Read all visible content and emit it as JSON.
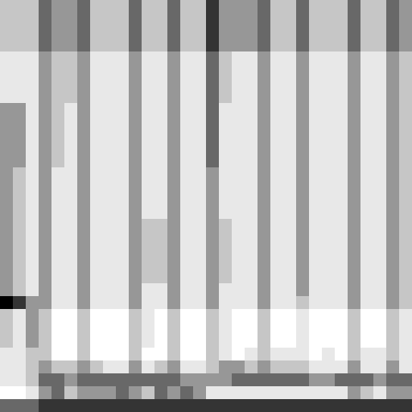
{
  "chart_data": {
    "type": "heatmap",
    "color": "greys",
    "tick_labels": false,
    "cells": [
      [
        4,
        4,
        4,
        6,
        5,
        5,
        6,
        4,
        4,
        4,
        6,
        4,
        4,
        6,
        4,
        4,
        7,
        5,
        5,
        5,
        6,
        4,
        4,
        6,
        4,
        4,
        4,
        6,
        4,
        4,
        6,
        5
      ],
      [
        4,
        4,
        4,
        6,
        5,
        5,
        6,
        4,
        4,
        4,
        6,
        4,
        4,
        6,
        4,
        4,
        7,
        5,
        5,
        5,
        6,
        4,
        4,
        6,
        4,
        4,
        4,
        6,
        4,
        4,
        6,
        5
      ],
      [
        4,
        4,
        4,
        6,
        5,
        5,
        6,
        4,
        4,
        4,
        6,
        4,
        4,
        6,
        4,
        4,
        7,
        5,
        5,
        5,
        6,
        4,
        4,
        6,
        4,
        4,
        4,
        6,
        4,
        4,
        6,
        5
      ],
      [
        4,
        4,
        4,
        6,
        5,
        5,
        6,
        4,
        4,
        4,
        6,
        4,
        4,
        6,
        4,
        4,
        7,
        5,
        5,
        5,
        6,
        4,
        4,
        6,
        4,
        4,
        4,
        6,
        4,
        4,
        6,
        5
      ],
      [
        3,
        3,
        3,
        5,
        4,
        4,
        5,
        3,
        3,
        3,
        5,
        3,
        3,
        5,
        3,
        3,
        6,
        4,
        3,
        3,
        5,
        3,
        3,
        5,
        3,
        3,
        3,
        5,
        3,
        3,
        5,
        4
      ],
      [
        3,
        3,
        3,
        5,
        4,
        4,
        5,
        3,
        3,
        3,
        5,
        3,
        3,
        5,
        3,
        3,
        6,
        4,
        3,
        3,
        5,
        3,
        3,
        5,
        3,
        3,
        3,
        5,
        3,
        3,
        5,
        4
      ],
      [
        3,
        3,
        3,
        5,
        4,
        4,
        5,
        3,
        3,
        3,
        5,
        3,
        3,
        5,
        3,
        3,
        6,
        4,
        3,
        3,
        5,
        3,
        3,
        5,
        3,
        3,
        3,
        5,
        3,
        3,
        5,
        4
      ],
      [
        3,
        3,
        3,
        5,
        4,
        4,
        5,
        3,
        3,
        3,
        5,
        3,
        3,
        5,
        3,
        3,
        6,
        4,
        3,
        3,
        5,
        3,
        3,
        5,
        3,
        3,
        3,
        5,
        3,
        3,
        5,
        4
      ],
      [
        5,
        5,
        3,
        5,
        4,
        3,
        5,
        3,
        3,
        3,
        5,
        3,
        3,
        5,
        3,
        3,
        6,
        3,
        3,
        3,
        5,
        3,
        3,
        5,
        3,
        3,
        3,
        5,
        3,
        3,
        5,
        4
      ],
      [
        5,
        5,
        3,
        5,
        4,
        3,
        5,
        3,
        3,
        3,
        5,
        3,
        3,
        5,
        3,
        3,
        6,
        3,
        3,
        3,
        5,
        3,
        3,
        5,
        3,
        3,
        3,
        5,
        3,
        3,
        5,
        4
      ],
      [
        5,
        5,
        3,
        5,
        4,
        3,
        5,
        3,
        3,
        3,
        5,
        3,
        3,
        5,
        3,
        3,
        6,
        3,
        3,
        3,
        5,
        3,
        3,
        5,
        3,
        3,
        3,
        5,
        3,
        3,
        5,
        4
      ],
      [
        5,
        5,
        3,
        5,
        4,
        3,
        5,
        3,
        3,
        3,
        5,
        3,
        3,
        5,
        3,
        3,
        6,
        3,
        3,
        3,
        5,
        3,
        3,
        5,
        3,
        3,
        3,
        5,
        3,
        3,
        5,
        4
      ],
      [
        5,
        5,
        3,
        5,
        4,
        3,
        5,
        3,
        3,
        3,
        5,
        3,
        3,
        5,
        3,
        3,
        6,
        3,
        3,
        3,
        5,
        3,
        3,
        5,
        3,
        3,
        3,
        5,
        3,
        3,
        5,
        4
      ],
      [
        5,
        4,
        3,
        5,
        3,
        3,
        5,
        3,
        3,
        3,
        5,
        3,
        3,
        5,
        3,
        3,
        5,
        3,
        3,
        3,
        5,
        3,
        3,
        5,
        3,
        3,
        3,
        5,
        3,
        3,
        5,
        4
      ],
      [
        5,
        4,
        3,
        5,
        3,
        3,
        5,
        3,
        3,
        3,
        5,
        3,
        3,
        5,
        3,
        3,
        5,
        3,
        3,
        3,
        5,
        3,
        3,
        5,
        3,
        3,
        3,
        5,
        3,
        3,
        5,
        4
      ],
      [
        5,
        4,
        3,
        5,
        3,
        3,
        5,
        3,
        3,
        3,
        5,
        3,
        3,
        5,
        3,
        3,
        5,
        3,
        3,
        3,
        5,
        3,
        3,
        5,
        3,
        3,
        3,
        5,
        3,
        3,
        5,
        4
      ],
      [
        5,
        4,
        3,
        5,
        3,
        3,
        5,
        3,
        3,
        3,
        5,
        3,
        3,
        5,
        3,
        3,
        5,
        3,
        3,
        3,
        5,
        3,
        3,
        5,
        3,
        3,
        3,
        5,
        3,
        3,
        5,
        4
      ],
      [
        5,
        4,
        3,
        5,
        3,
        3,
        5,
        3,
        3,
        3,
        5,
        4,
        4,
        5,
        3,
        3,
        5,
        4,
        3,
        3,
        5,
        3,
        3,
        5,
        3,
        3,
        3,
        5,
        3,
        3,
        5,
        4
      ],
      [
        5,
        4,
        3,
        5,
        3,
        3,
        5,
        3,
        3,
        3,
        5,
        4,
        4,
        5,
        3,
        3,
        5,
        4,
        3,
        3,
        5,
        3,
        3,
        5,
        3,
        3,
        3,
        5,
        3,
        3,
        5,
        4
      ],
      [
        5,
        4,
        3,
        5,
        3,
        3,
        5,
        3,
        3,
        3,
        5,
        4,
        4,
        5,
        3,
        3,
        5,
        4,
        3,
        3,
        5,
        3,
        3,
        5,
        3,
        3,
        3,
        5,
        3,
        3,
        5,
        4
      ],
      [
        5,
        4,
        3,
        5,
        3,
        3,
        5,
        3,
        3,
        3,
        5,
        4,
        4,
        5,
        3,
        3,
        5,
        4,
        3,
        3,
        5,
        3,
        3,
        5,
        3,
        3,
        3,
        5,
        3,
        3,
        5,
        4
      ],
      [
        5,
        4,
        3,
        5,
        3,
        3,
        5,
        3,
        3,
        3,
        5,
        4,
        4,
        5,
        3,
        3,
        5,
        4,
        3,
        3,
        5,
        3,
        3,
        5,
        3,
        3,
        3,
        5,
        3,
        3,
        5,
        4
      ],
      [
        5,
        4,
        3,
        5,
        3,
        3,
        5,
        3,
        3,
        3,
        5,
        3,
        3,
        5,
        3,
        3,
        5,
        3,
        3,
        3,
        5,
        3,
        3,
        5,
        3,
        3,
        3,
        5,
        3,
        3,
        5,
        4
      ],
      [
        8,
        7,
        5,
        5,
        3,
        3,
        5,
        3,
        3,
        3,
        5,
        3,
        3,
        5,
        3,
        3,
        5,
        3,
        3,
        3,
        5,
        3,
        3,
        4,
        3,
        3,
        3,
        5,
        3,
        3,
        5,
        4
      ],
      [
        4,
        3,
        5,
        4,
        2,
        2,
        4,
        2,
        2,
        2,
        4,
        3,
        2,
        4,
        2,
        2,
        4,
        3,
        2,
        2,
        4,
        2,
        2,
        3,
        2,
        2,
        2,
        4,
        2,
        2,
        4,
        3
      ],
      [
        4,
        3,
        5,
        4,
        2,
        2,
        4,
        2,
        2,
        2,
        4,
        3,
        2,
        4,
        2,
        2,
        4,
        3,
        2,
        2,
        4,
        2,
        2,
        3,
        2,
        2,
        2,
        4,
        2,
        2,
        4,
        3
      ],
      [
        4,
        3,
        5,
        4,
        2,
        2,
        4,
        2,
        2,
        2,
        4,
        3,
        2,
        4,
        2,
        2,
        4,
        3,
        2,
        2,
        4,
        2,
        2,
        3,
        2,
        2,
        2,
        4,
        2,
        2,
        4,
        3
      ],
      [
        3,
        3,
        4,
        4,
        2,
        2,
        4,
        2,
        2,
        2,
        4,
        2,
        2,
        4,
        2,
        2,
        4,
        3,
        2,
        3,
        4,
        3,
        3,
        3,
        2,
        3,
        2,
        4,
        3,
        3,
        4,
        3
      ],
      [
        3,
        3,
        4,
        5,
        4,
        4,
        5,
        4,
        3,
        3,
        5,
        3,
        4,
        5,
        3,
        3,
        4,
        5,
        5,
        4,
        5,
        4,
        4,
        4,
        3,
        3,
        3,
        5,
        3,
        3,
        5,
        3
      ],
      [
        3,
        3,
        4,
        6,
        6,
        5,
        6,
        6,
        6,
        6,
        6,
        6,
        6,
        6,
        5,
        5,
        5,
        5,
        6,
        6,
        6,
        6,
        6,
        6,
        5,
        5,
        6,
        6,
        6,
        5,
        6,
        6
      ],
      [
        2,
        2,
        3,
        5,
        6,
        4,
        5,
        5,
        5,
        6,
        5,
        4,
        6,
        5,
        6,
        5,
        3,
        3,
        3,
        3,
        3,
        3,
        3,
        3,
        3,
        3,
        3,
        5,
        4,
        3,
        5,
        5
      ],
      [
        6,
        6,
        6,
        7,
        7,
        7,
        7,
        7,
        7,
        7,
        7,
        7,
        7,
        7,
        7,
        7,
        7,
        7,
        7,
        7,
        7,
        7,
        7,
        7,
        7,
        7,
        7,
        7,
        7,
        7,
        7,
        7
      ]
    ]
  }
}
